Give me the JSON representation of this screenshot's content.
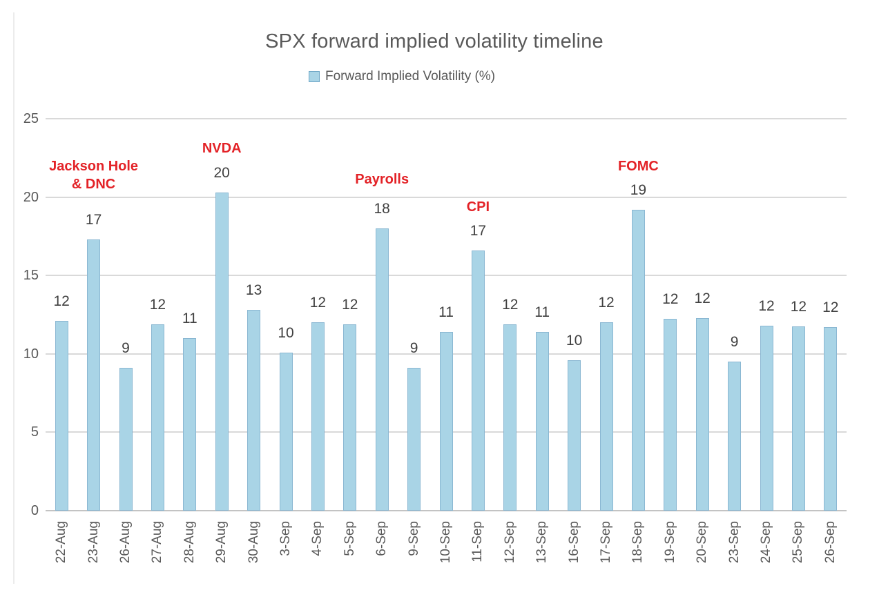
{
  "chart_data": {
    "type": "bar",
    "title": "SPX forward implied volatility timeline",
    "legend": "Forward Implied Volatility (%)",
    "xlabel": "",
    "ylabel": "",
    "ylim": [
      0,
      25
    ],
    "y_ticks": [
      0,
      5,
      10,
      15,
      20,
      25
    ],
    "grid": true,
    "legend_position": "top",
    "categories": [
      "22-Aug",
      "23-Aug",
      "26-Aug",
      "27-Aug",
      "28-Aug",
      "29-Aug",
      "30-Aug",
      "3-Sep",
      "4-Sep",
      "5-Sep",
      "6-Sep",
      "9-Sep",
      "10-Sep",
      "11-Sep",
      "12-Sep",
      "13-Sep",
      "16-Sep",
      "17-Sep",
      "18-Sep",
      "19-Sep",
      "20-Sep",
      "23-Sep",
      "24-Sep",
      "25-Sep",
      "26-Sep"
    ],
    "values": [
      12.1,
      17.3,
      9.1,
      11.9,
      11.0,
      20.3,
      12.8,
      10.1,
      12.0,
      11.9,
      18.0,
      9.1,
      11.4,
      16.6,
      11.9,
      11.4,
      9.6,
      12.0,
      19.2,
      12.25,
      12.3,
      9.5,
      11.8,
      11.75,
      11.7
    ],
    "data_labels": [
      12,
      17,
      9,
      12,
      11,
      20,
      13,
      10,
      12,
      12,
      18,
      9,
      11,
      17,
      12,
      11,
      10,
      12,
      19,
      12,
      12,
      9,
      12,
      12,
      12
    ],
    "annotations": [
      {
        "lines": [
          "Jackson Hole",
          "& DNC"
        ],
        "category": "23-Aug"
      },
      {
        "lines": [
          "NVDA"
        ],
        "category": "29-Aug"
      },
      {
        "lines": [
          "Payrolls"
        ],
        "category": "6-Sep"
      },
      {
        "lines": [
          "CPI"
        ],
        "category": "11-Sep"
      },
      {
        "lines": [
          "FOMC"
        ],
        "category": "18-Sep"
      }
    ],
    "colors": {
      "bar_fill": "#a9d4e6",
      "bar_border": "#8ab7d2",
      "gridline": "#d9d9d9",
      "axis_text": "#595959",
      "value_label_text": "#404040",
      "annotation_red": "#e32227",
      "background": "#ffffff"
    }
  }
}
